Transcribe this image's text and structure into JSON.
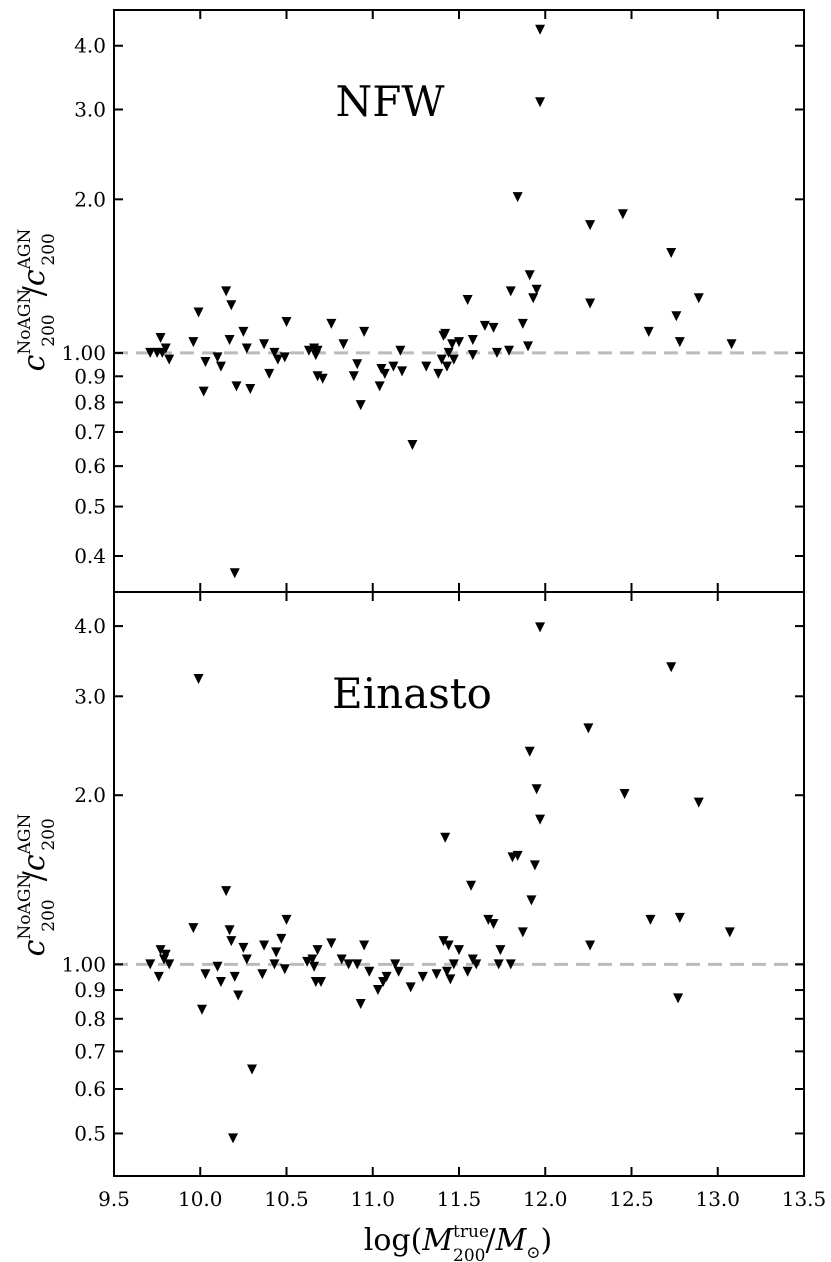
{
  "figure": {
    "xlabel": {
      "prefix": "log(",
      "m": "M",
      "sub": "200",
      "sup": "true",
      "slash": "/",
      "m2": "M",
      "sun": "⊙",
      "suffix": ")"
    },
    "ylabel": {
      "c": "c",
      "sub": "200",
      "sup_top": "NoAGN",
      "slash": "/",
      "sup_bottom": "AGN"
    }
  },
  "colors": {
    "marker": "#000000",
    "reference_line": "#bbbbbb",
    "axes": "#000000",
    "background": "#ffffff"
  },
  "chart_data": [
    {
      "type": "scatter",
      "panel_label": "NFW",
      "marker": "down-triangle",
      "x_scale": "linear",
      "y_scale": "log",
      "xlim": [
        9.5,
        13.5
      ],
      "ylim": [
        0.34,
        4.7
      ],
      "xticks": [
        9.5,
        10.0,
        10.5,
        11.0,
        11.5,
        12.0,
        12.5,
        13.0,
        13.5
      ],
      "xtick_labels": [
        "9.5",
        "10.0",
        "10.5",
        "11.0",
        "11.5",
        "12.0",
        "12.5",
        "13.0",
        "13.5"
      ],
      "yticks": [
        0.4,
        0.5,
        0.6,
        0.7,
        0.8,
        0.9,
        1.0,
        2.0,
        3.0,
        4.0
      ],
      "ytick_labels": [
        "0.4",
        "0.5",
        "0.6",
        "0.7",
        "0.8",
        "0.9",
        "1.00",
        "2.0",
        "3.0",
        "4.0"
      ],
      "reference_line": 1.0,
      "grid": false,
      "points": [
        [
          9.71,
          1.0
        ],
        [
          9.75,
          1.0
        ],
        [
          9.77,
          1.07
        ],
        [
          9.78,
          1.0
        ],
        [
          9.8,
          1.02
        ],
        [
          9.82,
          0.97
        ],
        [
          9.96,
          1.05
        ],
        [
          9.99,
          1.2
        ],
        [
          10.02,
          0.84
        ],
        [
          10.03,
          0.96
        ],
        [
          10.1,
          0.98
        ],
        [
          10.12,
          0.94
        ],
        [
          10.15,
          1.32
        ],
        [
          10.17,
          1.06
        ],
        [
          10.18,
          1.24
        ],
        [
          10.21,
          0.86
        ],
        [
          10.25,
          1.1
        ],
        [
          10.27,
          1.02
        ],
        [
          10.29,
          0.85
        ],
        [
          10.37,
          1.04
        ],
        [
          10.4,
          0.91
        ],
        [
          10.43,
          1.0
        ],
        [
          10.45,
          0.97
        ],
        [
          10.49,
          0.98
        ],
        [
          10.5,
          1.15
        ],
        [
          10.2,
          0.37
        ],
        [
          10.63,
          1.01
        ],
        [
          10.66,
          1.02
        ],
        [
          10.67,
          0.99
        ],
        [
          10.68,
          1.01
        ],
        [
          10.68,
          0.9
        ],
        [
          10.71,
          0.89
        ],
        [
          10.76,
          1.14
        ],
        [
          10.83,
          1.04
        ],
        [
          10.89,
          0.9
        ],
        [
          10.91,
          0.95
        ],
        [
          10.93,
          0.79
        ],
        [
          10.95,
          1.1
        ],
        [
          11.04,
          0.86
        ],
        [
          11.05,
          0.93
        ],
        [
          11.07,
          0.91
        ],
        [
          11.12,
          0.94
        ],
        [
          11.16,
          1.01
        ],
        [
          11.17,
          0.92
        ],
        [
          11.23,
          0.66
        ],
        [
          11.31,
          0.94
        ],
        [
          11.38,
          0.91
        ],
        [
          11.4,
          0.97
        ],
        [
          11.41,
          1.08
        ],
        [
          11.42,
          1.09
        ],
        [
          11.43,
          0.94
        ],
        [
          11.44,
          1.0
        ],
        [
          11.46,
          1.04
        ],
        [
          11.47,
          0.97
        ],
        [
          11.5,
          1.05
        ],
        [
          11.55,
          1.27
        ],
        [
          11.58,
          1.06
        ],
        [
          11.58,
          0.99
        ],
        [
          11.65,
          1.13
        ],
        [
          11.7,
          1.12
        ],
        [
          11.72,
          1.0
        ],
        [
          11.79,
          1.01
        ],
        [
          11.8,
          1.32
        ],
        [
          11.84,
          2.02
        ],
        [
          11.87,
          1.14
        ],
        [
          11.9,
          1.03
        ],
        [
          11.91,
          1.42
        ],
        [
          11.93,
          1.28
        ],
        [
          11.95,
          1.33
        ],
        [
          11.97,
          4.3
        ],
        [
          11.97,
          3.1
        ],
        [
          12.26,
          1.78
        ],
        [
          12.26,
          1.25
        ],
        [
          12.45,
          1.87
        ],
        [
          12.6,
          1.1
        ],
        [
          12.73,
          1.57
        ],
        [
          12.76,
          1.18
        ],
        [
          12.78,
          1.05
        ],
        [
          12.89,
          1.28
        ],
        [
          13.08,
          1.04
        ]
      ]
    },
    {
      "type": "scatter",
      "panel_label": "Einasto",
      "marker": "down-triangle",
      "x_scale": "linear",
      "y_scale": "log",
      "xlim": [
        9.5,
        13.5
      ],
      "ylim": [
        0.42,
        4.6
      ],
      "xticks": [
        9.5,
        10.0,
        10.5,
        11.0,
        11.5,
        12.0,
        12.5,
        13.0,
        13.5
      ],
      "xtick_labels": [
        "9.5",
        "10.0",
        "10.5",
        "11.0",
        "11.5",
        "12.0",
        "12.5",
        "13.0",
        "13.5"
      ],
      "yticks": [
        0.5,
        0.6,
        0.7,
        0.8,
        0.9,
        1.0,
        2.0,
        3.0,
        4.0
      ],
      "ytick_labels": [
        "0.5",
        "0.6",
        "0.7",
        "0.8",
        "0.9",
        "1.00",
        "2.0",
        "3.0",
        "4.0"
      ],
      "reference_line": 1.0,
      "grid": false,
      "points": [
        [
          9.71,
          1.0
        ],
        [
          9.76,
          0.95
        ],
        [
          9.77,
          1.06
        ],
        [
          9.79,
          1.02
        ],
        [
          9.8,
          1.04
        ],
        [
          9.82,
          1.0
        ],
        [
          9.96,
          1.16
        ],
        [
          9.99,
          3.22
        ],
        [
          10.01,
          0.83
        ],
        [
          10.03,
          0.96
        ],
        [
          10.1,
          0.99
        ],
        [
          10.12,
          0.93
        ],
        [
          10.15,
          1.35
        ],
        [
          10.17,
          1.15
        ],
        [
          10.18,
          1.1
        ],
        [
          10.19,
          0.49
        ],
        [
          10.2,
          0.95
        ],
        [
          10.22,
          0.88
        ],
        [
          10.25,
          1.07
        ],
        [
          10.27,
          1.02
        ],
        [
          10.3,
          0.65
        ],
        [
          10.36,
          0.96
        ],
        [
          10.37,
          1.08
        ],
        [
          10.43,
          1.0
        ],
        [
          10.44,
          1.05
        ],
        [
          10.47,
          1.11
        ],
        [
          10.49,
          0.98
        ],
        [
          10.5,
          1.2
        ],
        [
          10.62,
          1.01
        ],
        [
          10.65,
          1.02
        ],
        [
          10.66,
          0.99
        ],
        [
          10.67,
          0.93
        ],
        [
          10.68,
          1.06
        ],
        [
          10.7,
          0.93
        ],
        [
          10.76,
          1.09
        ],
        [
          10.82,
          1.02
        ],
        [
          10.86,
          1.0
        ],
        [
          10.91,
          1.0
        ],
        [
          10.93,
          0.85
        ],
        [
          10.95,
          1.08
        ],
        [
          10.98,
          0.97
        ],
        [
          11.03,
          0.9
        ],
        [
          11.06,
          0.93
        ],
        [
          11.08,
          0.95
        ],
        [
          11.13,
          1.0
        ],
        [
          11.15,
          0.97
        ],
        [
          11.22,
          0.91
        ],
        [
          11.29,
          0.95
        ],
        [
          11.37,
          0.96
        ],
        [
          11.41,
          1.1
        ],
        [
          11.42,
          1.68
        ],
        [
          11.43,
          0.97
        ],
        [
          11.44,
          1.08
        ],
        [
          11.45,
          0.94
        ],
        [
          11.47,
          1.0
        ],
        [
          11.5,
          1.06
        ],
        [
          11.55,
          0.97
        ],
        [
          11.57,
          1.38
        ],
        [
          11.58,
          1.02
        ],
        [
          11.6,
          1.0
        ],
        [
          11.67,
          1.2
        ],
        [
          11.7,
          1.18
        ],
        [
          11.73,
          1.0
        ],
        [
          11.74,
          1.06
        ],
        [
          11.8,
          1.0
        ],
        [
          11.81,
          1.55
        ],
        [
          11.84,
          1.56
        ],
        [
          11.87,
          1.14
        ],
        [
          11.91,
          2.39
        ],
        [
          11.92,
          1.3
        ],
        [
          11.94,
          1.5
        ],
        [
          11.95,
          2.05
        ],
        [
          11.97,
          3.98
        ],
        [
          11.97,
          1.81
        ],
        [
          12.25,
          2.63
        ],
        [
          12.26,
          1.08
        ],
        [
          12.46,
          2.01
        ],
        [
          12.61,
          1.2
        ],
        [
          12.73,
          3.38
        ],
        [
          12.77,
          0.87
        ],
        [
          12.78,
          1.21
        ],
        [
          12.89,
          1.94
        ],
        [
          13.07,
          1.14
        ]
      ]
    }
  ]
}
